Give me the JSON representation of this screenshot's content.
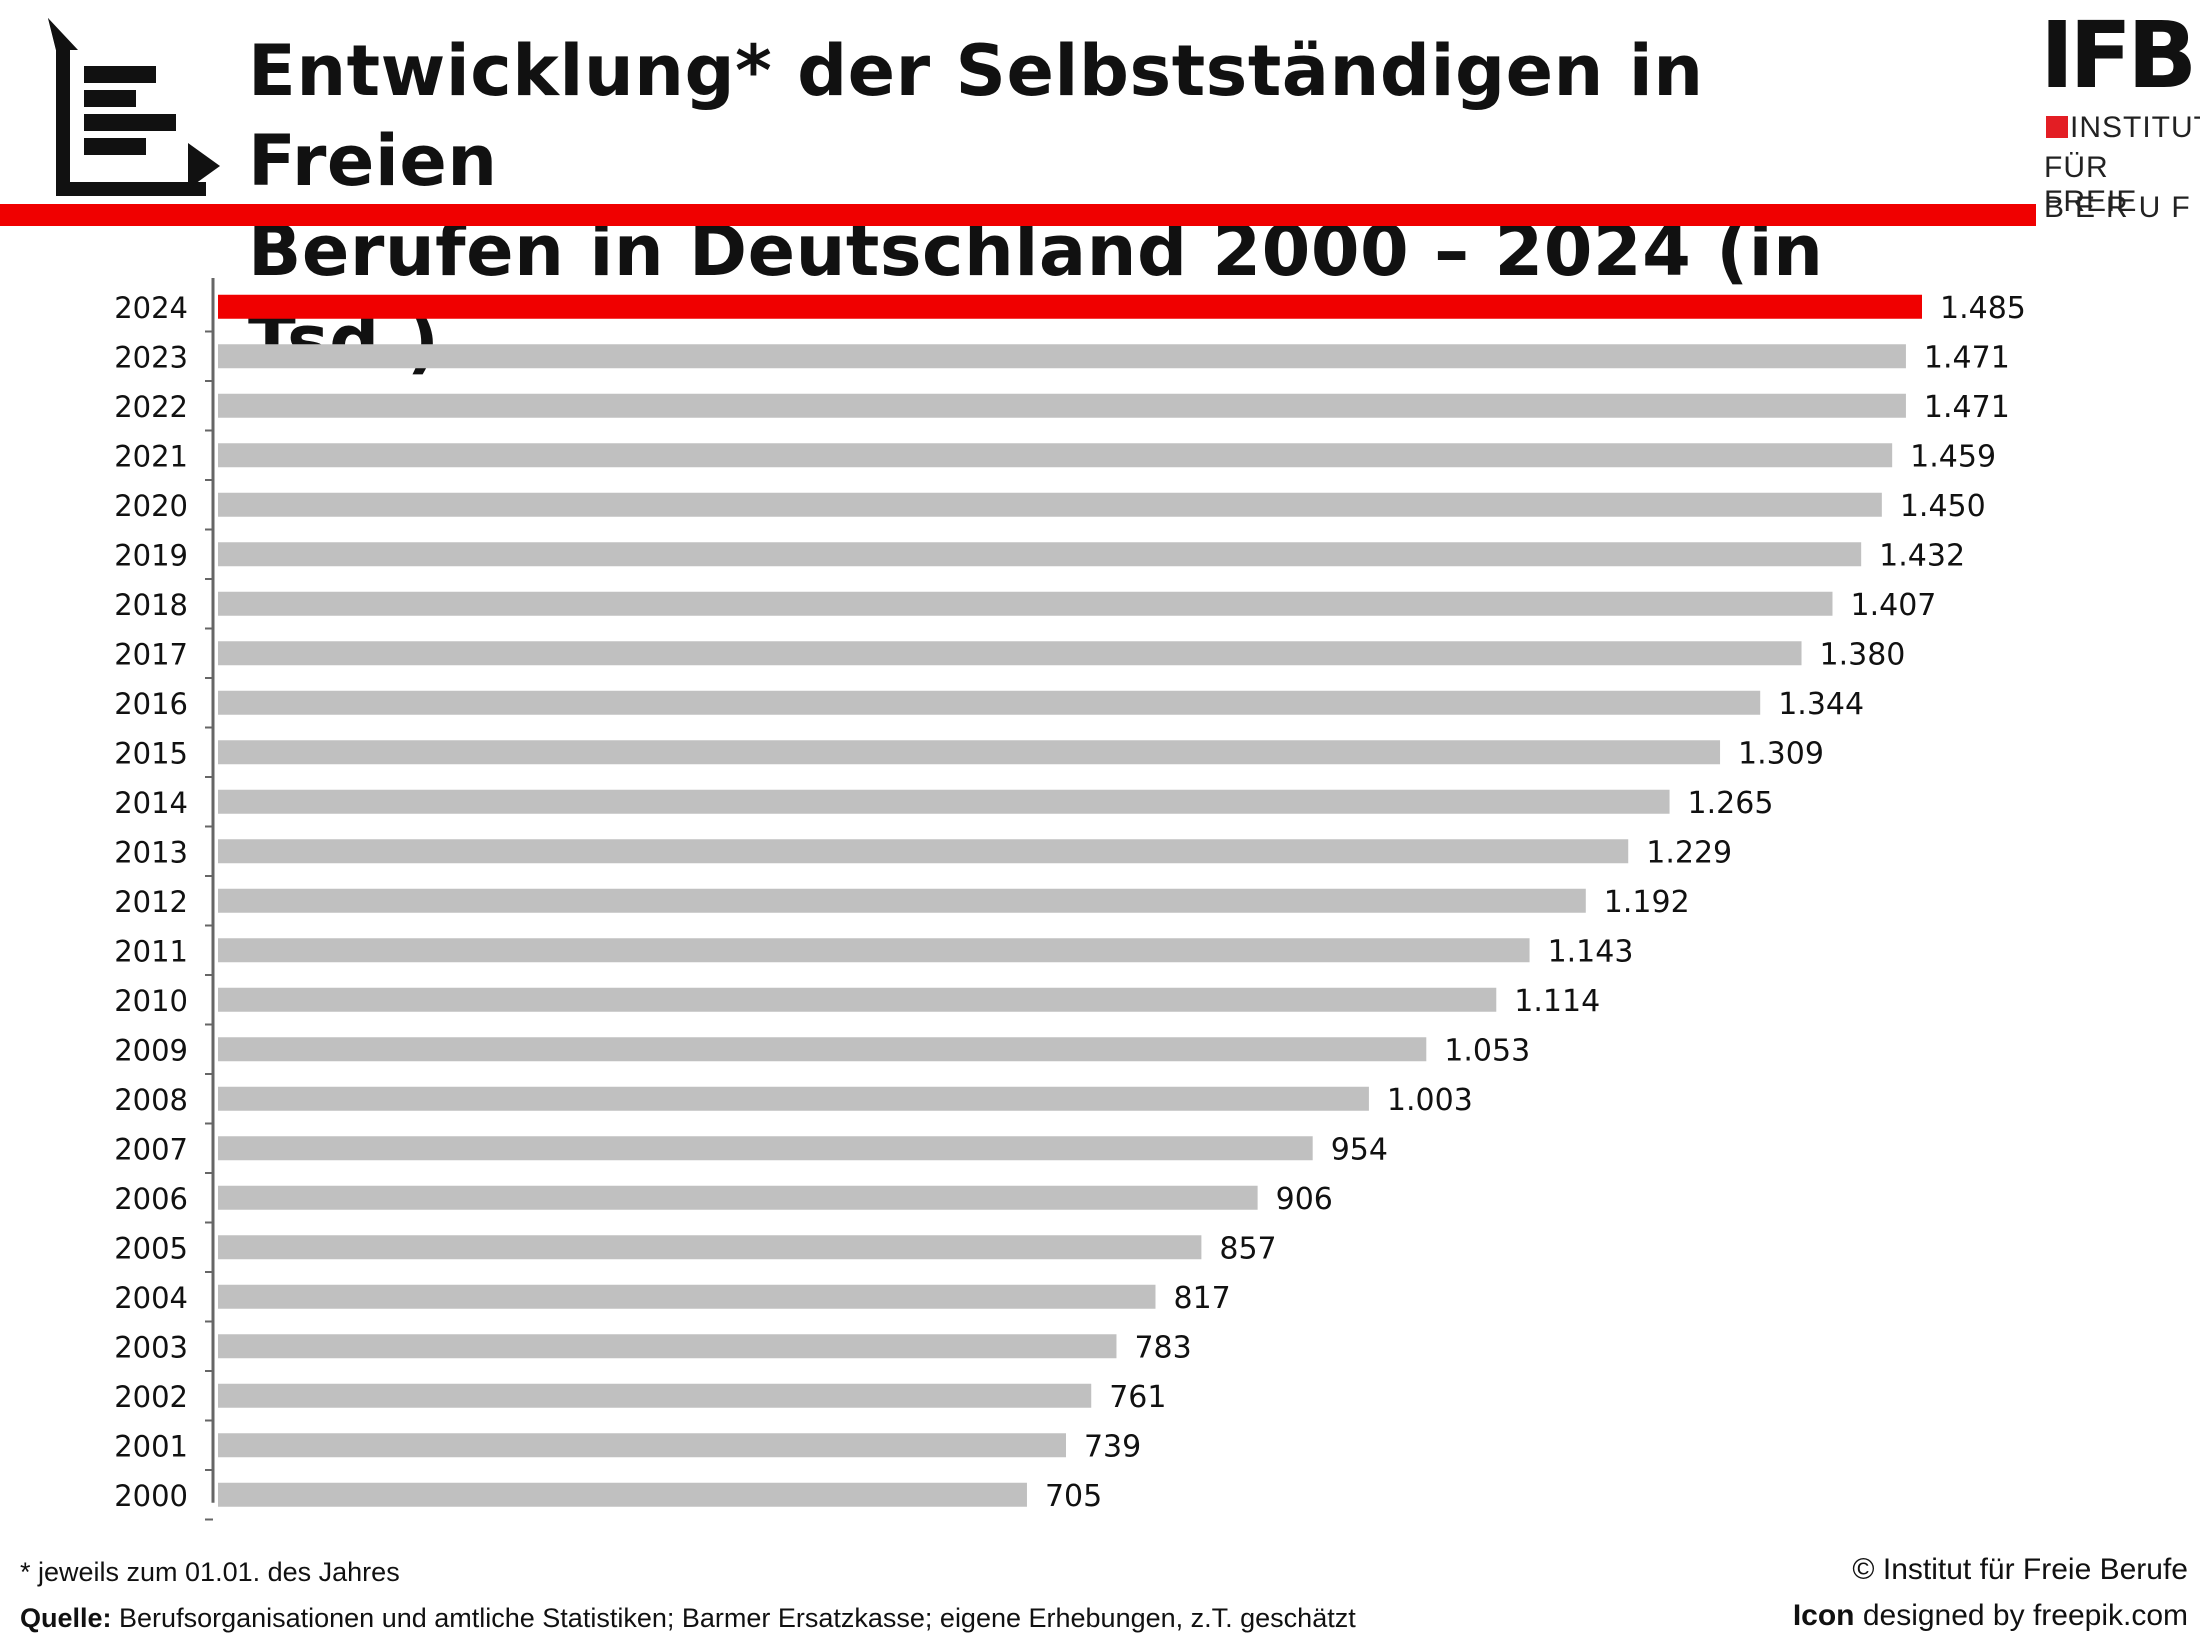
{
  "header": {
    "title_line1": "Entwicklung* der Selbstständigen in Freien",
    "title_line2": "Berufen in Deutschland 2000 – 2024 (in Tsd.)"
  },
  "logo": {
    "wordmark": "IFB",
    "line1": "INSTITUT",
    "line2": "FÜR FREIE",
    "line3": "BERUFE",
    "accent_color": "#e31e24"
  },
  "colors": {
    "highlight_bar": "#f00000",
    "default_bar": "#c0c0c0",
    "band": "#f00000"
  },
  "icons": {
    "header": "bar-chart-icon"
  },
  "chart_data": {
    "type": "bar",
    "orientation": "horizontal",
    "title": "Entwicklung* der Selbstständigen in Freien Berufen in Deutschland 2000 – 2024 (in Tsd.)",
    "categories": [
      "2024",
      "2023",
      "2022",
      "2021",
      "2020",
      "2019",
      "2018",
      "2017",
      "2016",
      "2015",
      "2014",
      "2013",
      "2012",
      "2011",
      "2010",
      "2009",
      "2008",
      "2007",
      "2006",
      "2005",
      "2004",
      "2003",
      "2002",
      "2001",
      "2000"
    ],
    "values": [
      1485,
      1471,
      1471,
      1459,
      1450,
      1432,
      1407,
      1380,
      1344,
      1309,
      1265,
      1229,
      1192,
      1143,
      1114,
      1053,
      1003,
      954,
      906,
      857,
      817,
      783,
      761,
      739,
      705
    ],
    "value_labels": [
      "1.485",
      "1.471",
      "1.471",
      "1.459",
      "1.450",
      "1.432",
      "1.407",
      "1.380",
      "1.344",
      "1.309",
      "1.265",
      "1.229",
      "1.192",
      "1.143",
      "1.114",
      "1.053",
      "1.003",
      "954",
      "906",
      "857",
      "817",
      "783",
      "761",
      "739",
      "705"
    ],
    "highlight_index": 0,
    "xlim": [
      0,
      1485
    ],
    "grid": false,
    "legend": "none"
  },
  "footer": {
    "note": "* jeweils zum 01.01. des Jahres",
    "source_label": "Quelle:",
    "source_text": " Berufsorganisationen und amtliche Statistiken; Barmer Ersatzkasse; eigene Erhebungen, z.T. geschätzt",
    "copyright": "© Institut für Freie Berufe",
    "icon_credit_bold": "Icon",
    "icon_credit_text": " designed by freepik.com"
  }
}
